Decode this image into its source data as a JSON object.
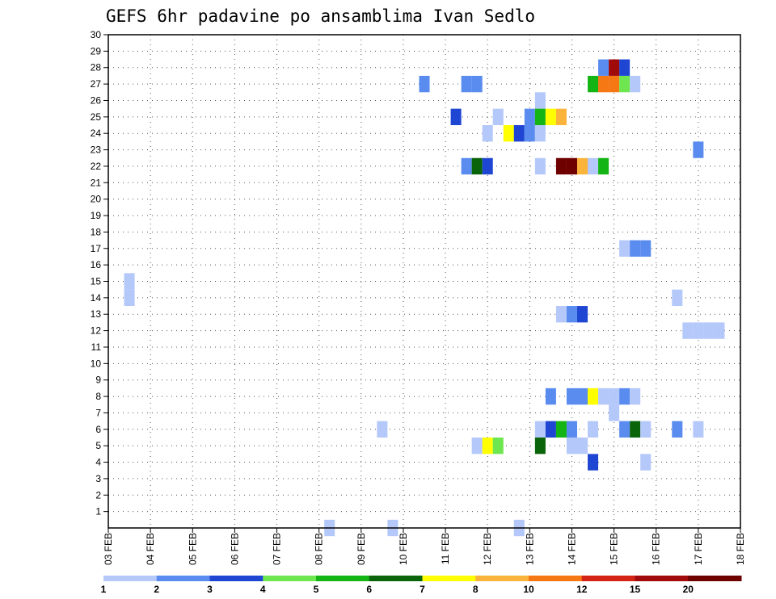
{
  "chart_data": {
    "type": "heatmap",
    "title": "GEFS 6hr padavine po ansamblima Ivan Sedlo",
    "x_tick_labels": [
      "03 FEB",
      "04 FEB",
      "05 FEB",
      "06 FEB",
      "07 FEB",
      "08 FEB",
      "09 FEB",
      "10 FEB",
      "11 FEB",
      "12 FEB",
      "13 FEB",
      "14 FEB",
      "15 FEB",
      "16 FEB",
      "17 FEB",
      "18 FEB"
    ],
    "y_tick_labels": [
      "1",
      "2",
      "3",
      "4",
      "5",
      "6",
      "7",
      "8",
      "9",
      "10",
      "11",
      "12",
      "13",
      "14",
      "15",
      "16",
      "17",
      "18",
      "19",
      "20",
      "21",
      "22",
      "23",
      "24",
      "25",
      "26",
      "27",
      "28",
      "29",
      "30"
    ],
    "xlim": [
      "03 FEB 00z",
      "18 FEB 00z"
    ],
    "time_step_hours": 6,
    "ylim": [
      0,
      30
    ],
    "grid": true,
    "legend": {
      "position": "bottom",
      "boundaries": [
        "1",
        "2",
        "3",
        "4",
        "5",
        "6",
        "7",
        "8",
        "10",
        "12",
        "15",
        "20"
      ],
      "colors": [
        "#b4c8fa",
        "#5a8cf0",
        "#1e46d2",
        "#6ee650",
        "#14b414",
        "#0a640a",
        "#ffff00",
        "#fab43c",
        "#f57814",
        "#d22314",
        "#a00a0a",
        "#6e0000"
      ]
    },
    "cells": [
      {
        "time": "03 FEB 12z",
        "member": 15,
        "color": "#b4c8fa"
      },
      {
        "time": "03 FEB 12z",
        "member": 14,
        "color": "#b4c8fa"
      },
      {
        "time": "08 FEB 06z",
        "member": 0,
        "color": "#b4c8fa"
      },
      {
        "time": "09 FEB 12z",
        "member": 6,
        "color": "#b4c8fa"
      },
      {
        "time": "09 FEB 18z",
        "member": 0,
        "color": "#b4c8fa"
      },
      {
        "time": "10 FEB 12z",
        "member": 27,
        "color": "#5a8cf0"
      },
      {
        "time": "11 FEB 06z",
        "member": 25,
        "color": "#1e46d2"
      },
      {
        "time": "11 FEB 12z",
        "member": 27,
        "color": "#5a8cf0"
      },
      {
        "time": "11 FEB 18z",
        "member": 27,
        "color": "#5a8cf0"
      },
      {
        "time": "11 FEB 12z",
        "member": 22,
        "color": "#5a8cf0"
      },
      {
        "time": "11 FEB 18z",
        "member": 22,
        "color": "#0a640a"
      },
      {
        "time": "12 FEB 00z",
        "member": 22,
        "color": "#1e46d2"
      },
      {
        "time": "11 FEB 18z",
        "member": 5,
        "color": "#b4c8fa"
      },
      {
        "time": "12 FEB 00z",
        "member": 5,
        "color": "#ffff00"
      },
      {
        "time": "12 FEB 06z",
        "member": 5,
        "color": "#6ee650"
      },
      {
        "time": "12 FEB 00z",
        "member": 24,
        "color": "#b4c8fa"
      },
      {
        "time": "12 FEB 06z",
        "member": 25,
        "color": "#b4c8fa"
      },
      {
        "time": "12 FEB 12z",
        "member": 24,
        "color": "#ffff00"
      },
      {
        "time": "12 FEB 18z",
        "member": 24,
        "color": "#1e46d2"
      },
      {
        "time": "12 FEB 18z",
        "member": 0,
        "color": "#b4c8fa"
      },
      {
        "time": "13 FEB 00z",
        "member": 24,
        "color": "#5a8cf0"
      },
      {
        "time": "13 FEB 00z",
        "member": 25,
        "color": "#5a8cf0"
      },
      {
        "time": "13 FEB 06z",
        "member": 24,
        "color": "#b4c8fa"
      },
      {
        "time": "13 FEB 06z",
        "member": 26,
        "color": "#b4c8fa"
      },
      {
        "time": "13 FEB 06z",
        "member": 25,
        "color": "#14b414"
      },
      {
        "time": "13 FEB 12z",
        "member": 25,
        "color": "#ffff00"
      },
      {
        "time": "13 FEB 18z",
        "member": 25,
        "color": "#fab43c"
      },
      {
        "time": "13 FEB 06z",
        "member": 22,
        "color": "#b4c8fa"
      },
      {
        "time": "13 FEB 18z",
        "member": 22,
        "color": "#6e0000"
      },
      {
        "time": "14 FEB 00z",
        "member": 22,
        "color": "#6e0000"
      },
      {
        "time": "14 FEB 06z",
        "member": 22,
        "color": "#fab43c"
      },
      {
        "time": "14 FEB 12z",
        "member": 22,
        "color": "#b4c8fa"
      },
      {
        "time": "14 FEB 18z",
        "member": 22,
        "color": "#14b414"
      },
      {
        "time": "13 FEB 06z",
        "member": 6,
        "color": "#b4c8fa"
      },
      {
        "time": "13 FEB 12z",
        "member": 6,
        "color": "#1e46d2"
      },
      {
        "time": "13 FEB 18z",
        "member": 6,
        "color": "#14b414"
      },
      {
        "time": "14 FEB 00z",
        "member": 6,
        "color": "#5a8cf0"
      },
      {
        "time": "14 FEB 12z",
        "member": 6,
        "color": "#b4c8fa"
      },
      {
        "time": "13 FEB 06z",
        "member": 5,
        "color": "#0a640a"
      },
      {
        "time": "13 FEB 12z",
        "member": 8,
        "color": "#5a8cf0"
      },
      {
        "time": "13 FEB 18z",
        "member": 13,
        "color": "#b4c8fa"
      },
      {
        "time": "14 FEB 00z",
        "member": 13,
        "color": "#5a8cf0"
      },
      {
        "time": "14 FEB 06z",
        "member": 13,
        "color": "#1e46d2"
      },
      {
        "time": "14 FEB 00z",
        "member": 8,
        "color": "#5a8cf0"
      },
      {
        "time": "14 FEB 06z",
        "member": 8,
        "color": "#5a8cf0"
      },
      {
        "time": "14 FEB 12z",
        "member": 8,
        "color": "#ffff00"
      },
      {
        "time": "14 FEB 18z",
        "member": 8,
        "color": "#b4c8fa"
      },
      {
        "time": "15 FEB 00z",
        "member": 8,
        "color": "#b4c8fa"
      },
      {
        "time": "15 FEB 06z",
        "member": 8,
        "color": "#5a8cf0"
      },
      {
        "time": "15 FEB 12z",
        "member": 8,
        "color": "#b4c8fa"
      },
      {
        "time": "14 FEB 00z",
        "member": 5,
        "color": "#b4c8fa"
      },
      {
        "time": "14 FEB 06z",
        "member": 5,
        "color": "#b4c8fa"
      },
      {
        "time": "14 FEB 12z",
        "member": 4,
        "color": "#1e46d2"
      },
      {
        "time": "15 FEB 00z",
        "member": 7,
        "color": "#b4c8fa"
      },
      {
        "time": "14 FEB 12z",
        "member": 27,
        "color": "#14b414"
      },
      {
        "time": "14 FEB 18z",
        "member": 27,
        "color": "#f57814"
      },
      {
        "time": "15 FEB 00z",
        "member": 27,
        "color": "#f57814"
      },
      {
        "time": "15 FEB 06z",
        "member": 27,
        "color": "#6ee650"
      },
      {
        "time": "15 FEB 12z",
        "member": 27,
        "color": "#b4c8fa"
      },
      {
        "time": "14 FEB 18z",
        "member": 28,
        "color": "#5a8cf0"
      },
      {
        "time": "15 FEB 00z",
        "member": 28,
        "color": "#a00a0a"
      },
      {
        "time": "15 FEB 06z",
        "member": 28,
        "color": "#1e46d2"
      },
      {
        "time": "15 FEB 06z",
        "member": 17,
        "color": "#b4c8fa"
      },
      {
        "time": "15 FEB 12z",
        "member": 17,
        "color": "#5a8cf0"
      },
      {
        "time": "15 FEB 18z",
        "member": 17,
        "color": "#5a8cf0"
      },
      {
        "time": "15 FEB 06z",
        "member": 6,
        "color": "#5a8cf0"
      },
      {
        "time": "15 FEB 12z",
        "member": 6,
        "color": "#0a640a"
      },
      {
        "time": "15 FEB 18z",
        "member": 6,
        "color": "#b4c8fa"
      },
      {
        "time": "15 FEB 18z",
        "member": 4,
        "color": "#b4c8fa"
      },
      {
        "time": "16 FEB 12z",
        "member": 6,
        "color": "#5a8cf0"
      },
      {
        "time": "16 FEB 12z",
        "member": 14,
        "color": "#b4c8fa"
      },
      {
        "time": "16 FEB 18z",
        "member": 12,
        "color": "#b4c8fa"
      },
      {
        "time": "17 FEB 00z",
        "member": 12,
        "color": "#b4c8fa"
      },
      {
        "time": "17 FEB 06z",
        "member": 12,
        "color": "#b4c8fa"
      },
      {
        "time": "17 FEB 12z",
        "member": 12,
        "color": "#b4c8fa"
      },
      {
        "time": "17 FEB 00z",
        "member": 6,
        "color": "#b4c8fa"
      },
      {
        "time": "17 FEB 00z",
        "member": 23,
        "color": "#5a8cf0"
      }
    ]
  }
}
